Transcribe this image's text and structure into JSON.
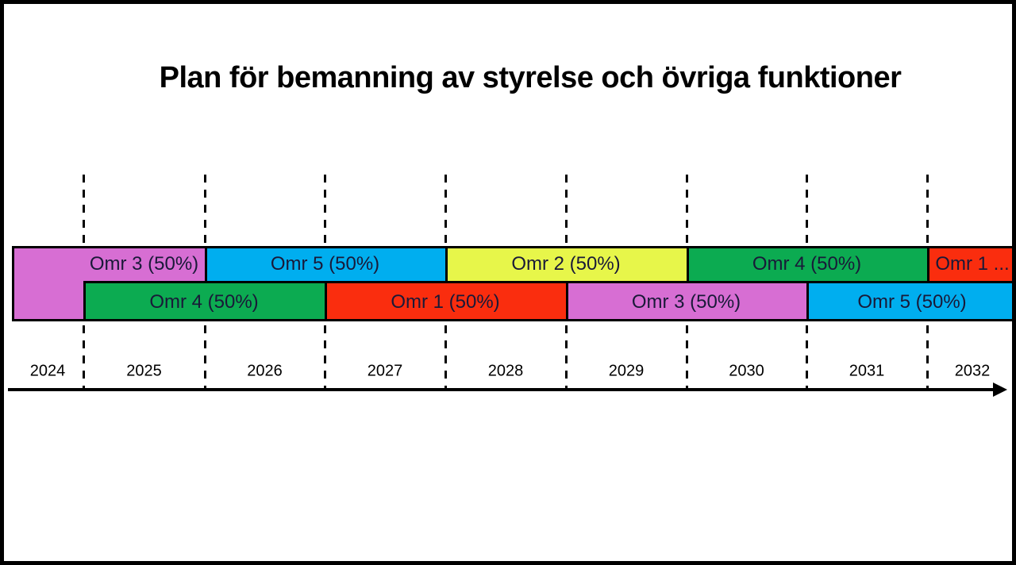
{
  "title": "Plan för bemanning av styrelse och övriga funktioner",
  "chart_data": {
    "type": "timeline",
    "title": "Plan för bemanning av styrelse och övriga funktioner",
    "x_axis": {
      "tick_labels": [
        "2024",
        "2025",
        "2026",
        "2027",
        "2028",
        "2029",
        "2030",
        "2031",
        "2032"
      ],
      "start_year": 2024,
      "end_year": 2032,
      "arrow": true,
      "gridlines": "dashed-vertical-at-year-boundaries"
    },
    "palette": {
      "magenta": "#D76ED3",
      "blue": "#00AEEF",
      "yellow": "#E7F64A",
      "green": "#0CAB51",
      "red": "#FA2D0E",
      "bar_border": "#000000",
      "label_text": "#191938"
    },
    "rows": [
      {
        "name": "top",
        "segments": [
          {
            "label": "Omr 3 (50%)",
            "color": "magenta",
            "start_year": 2024,
            "end_year": 2026,
            "label_start_year": 2025,
            "double_height_until": 2025
          },
          {
            "label": "Omr 5 (50%)",
            "color": "blue",
            "start_year": 2026,
            "end_year": 2028
          },
          {
            "label": "Omr 2 (50%)",
            "color": "yellow",
            "start_year": 2028,
            "end_year": 2030
          },
          {
            "label": "Omr 4 (50%)",
            "color": "green",
            "start_year": 2030,
            "end_year": 2032
          },
          {
            "label": "Omr 1 ...",
            "color": "red",
            "start_year": 2032,
            "end_year": 2033
          }
        ]
      },
      {
        "name": "bottom",
        "segments": [
          {
            "label": "",
            "color": "magenta",
            "start_year": 2024,
            "end_year": 2025
          },
          {
            "label": "Omr 4 (50%)",
            "color": "green",
            "start_year": 2025,
            "end_year": 2027
          },
          {
            "label": "Omr 1 (50%)",
            "color": "red",
            "start_year": 2027,
            "end_year": 2029
          },
          {
            "label": "Omr 3 (50%)",
            "color": "magenta",
            "start_year": 2029,
            "end_year": 2031
          },
          {
            "label": "Omr 5 (50%)",
            "color": "blue",
            "start_year": 2031,
            "end_year": 2033
          }
        ]
      }
    ]
  }
}
